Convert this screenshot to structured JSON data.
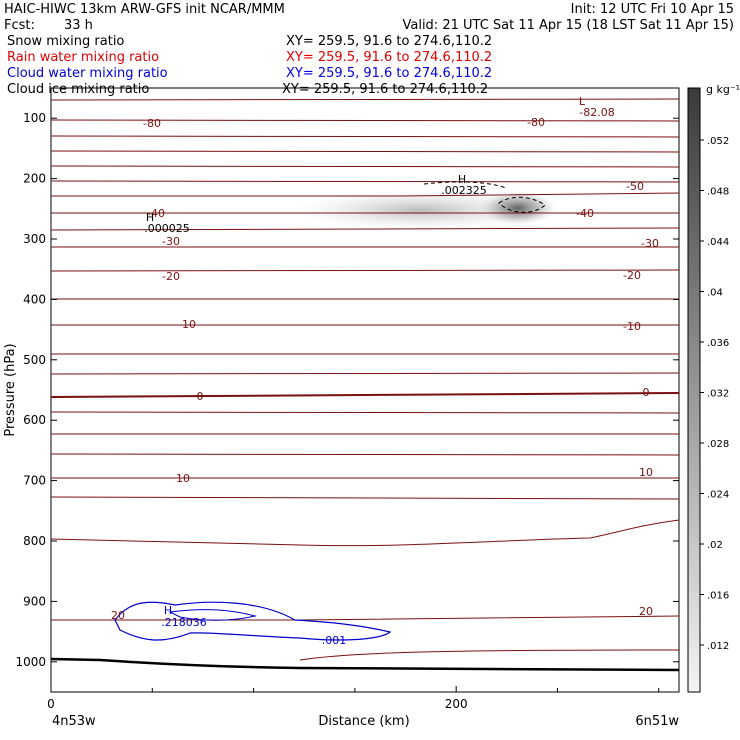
{
  "header": {
    "title": "HAIC-HIWC 13km ARW-GFS init    NCAR/MMM",
    "init": "Init: 12 UTC Fri 10 Apr 15",
    "fcst_label": "Fcst:",
    "fcst_value": "33 h",
    "valid": "Valid: 21 UTC Sat 11 Apr 15 (18 LST Sat 11 Apr 15)"
  },
  "fields": [
    {
      "name": "Snow mixing ratio",
      "xy": "XY= 259.5, 91.6 to 274.6,110.2",
      "color": "#000000"
    },
    {
      "name": "Rain water mixing ratio",
      "xy": "XY= 259.5, 91.6 to 274.6,110.2",
      "color": "#e00000"
    },
    {
      "name": "Cloud water mixing ratio",
      "xy": "XY= 259.5, 91.6 to 274.6,110.2",
      "color": "#0000e0"
    },
    {
      "name": "Cloud ice mixing ratio",
      "xy": "XY= 259.5, 91.6 to 274.6,110.2",
      "color": "#000000"
    }
  ],
  "chart_data": {
    "type": "cross-section",
    "xlabel": "Distance (km)",
    "ylabel": "Pressure (hPa)",
    "xlim": [
      0,
      310
    ],
    "ylim": [
      1050,
      50
    ],
    "x_ticks": [
      0,
      200
    ],
    "y_ticks": [
      100,
      200,
      300,
      400,
      500,
      600,
      700,
      800,
      900,
      1000
    ],
    "x_endpoint_labels": {
      "left": "4n53w",
      "right": "6n51w"
    },
    "colorbar": {
      "unit": "g kg⁻¹",
      "ticks": [
        ".012",
        ".016",
        ".02",
        ".024",
        ".028",
        ".032",
        ".036",
        ".04",
        ".044",
        ".048",
        ".052"
      ]
    },
    "temperature_contour_labels": [
      "-80",
      "-50",
      "-40",
      "-30",
      "-20",
      "-10",
      "0",
      "10",
      "20"
    ],
    "extrema": [
      {
        "kind": "L",
        "value": "-82.08"
      },
      {
        "kind": "H",
        "value": ".002325"
      },
      {
        "kind": "H",
        "value": ".000025"
      },
      {
        "kind": "H",
        "value": ".218036"
      }
    ],
    "cloud_water_contour_label": ".001",
    "colors": {
      "temperature": "#7a0f0f",
      "cloud_water": "#0000cc",
      "surface": "#000000"
    }
  }
}
